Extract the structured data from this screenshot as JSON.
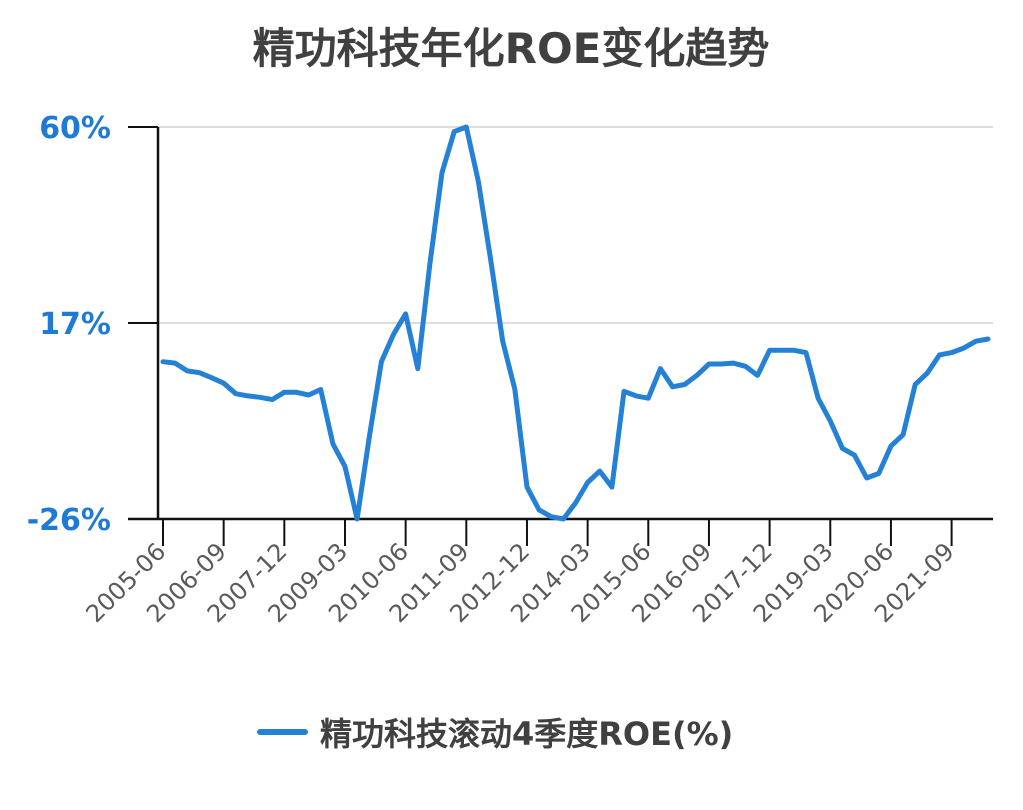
{
  "chart_data": {
    "type": "line",
    "title": "精功科技年化ROE变化趋势",
    "xlabel": "",
    "ylabel": "",
    "y_ticks": [
      "60%",
      "17%",
      "-26%"
    ],
    "y_tick_values": [
      60,
      17,
      -26
    ],
    "ylim": [
      -26,
      60
    ],
    "grid": "horizontal",
    "legend_position": "bottom-center",
    "line_color": "#2481d6",
    "x_tick_labels": [
      "2005-06",
      "2006-09",
      "2007-12",
      "2009-03",
      "2010-06",
      "2011-09",
      "2012-12",
      "2014-03",
      "2015-06",
      "2016-09",
      "2017-12",
      "2019-03",
      "2020-06",
      "2021-09"
    ],
    "series": [
      {
        "name": "精功科技滚动4季度ROE(%)",
        "x": [
          "2005-06",
          "2005-09",
          "2005-12",
          "2006-03",
          "2006-06",
          "2006-09",
          "2006-12",
          "2007-03",
          "2007-06",
          "2007-09",
          "2007-12",
          "2008-03",
          "2008-06",
          "2008-09",
          "2008-12",
          "2009-03",
          "2009-06",
          "2009-09",
          "2009-12",
          "2010-03",
          "2010-06",
          "2010-09",
          "2010-12",
          "2011-03",
          "2011-06",
          "2011-09",
          "2011-12",
          "2012-03",
          "2012-06",
          "2012-09",
          "2012-12",
          "2013-03",
          "2013-06",
          "2013-09",
          "2013-12",
          "2014-03",
          "2014-06",
          "2014-09",
          "2014-12",
          "2015-03",
          "2015-06",
          "2015-09",
          "2015-12",
          "2016-03",
          "2016-06",
          "2016-09",
          "2016-12",
          "2017-03",
          "2017-06",
          "2017-09",
          "2017-12",
          "2018-03",
          "2018-06",
          "2018-09",
          "2018-12",
          "2019-03",
          "2019-06",
          "2019-09",
          "2019-12",
          "2020-03",
          "2020-06",
          "2020-09",
          "2020-12",
          "2021-03",
          "2021-06",
          "2021-09",
          "2021-12",
          "2022-03",
          "2022-06"
        ],
        "values": [
          8.5,
          8.2,
          6.5,
          6.1,
          5.0,
          3.8,
          1.5,
          1.0,
          0.7,
          0.2,
          1.8,
          1.8,
          1.2,
          2.4,
          -9.5,
          -14.5,
          -26.0,
          -8.0,
          8.5,
          14.5,
          19.0,
          7.0,
          30.0,
          50.0,
          59.0,
          60.0,
          48.0,
          31.0,
          13.0,
          2.5,
          -19.0,
          -24.0,
          -25.5,
          -26.0,
          -22.5,
          -18.0,
          -15.5,
          -19.0,
          2.0,
          1.0,
          0.5,
          7.0,
          3.0,
          3.5,
          5.5,
          8.0,
          8.0,
          8.2,
          7.5,
          5.5,
          11.0,
          11.0,
          11.0,
          10.5,
          0.5,
          -4.5,
          -10.5,
          -12.0,
          -17.0,
          -16.0,
          -10.0,
          -7.5,
          3.5,
          6.0,
          10.0,
          10.5,
          11.5,
          13.0,
          13.5
        ]
      }
    ]
  }
}
